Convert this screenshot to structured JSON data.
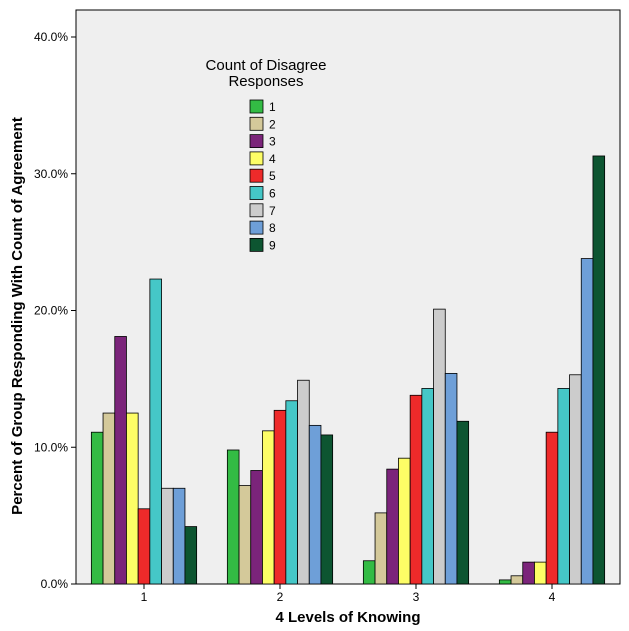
{
  "chart_data": {
    "type": "bar",
    "xlabel": "4 Levels of Knowing",
    "ylabel": "Percent of Group Responding With Count of Agreement",
    "categories": [
      "1",
      "2",
      "3",
      "4"
    ],
    "ylim": [
      0,
      40
    ],
    "y_ticks": [
      {
        "value": 0,
        "label": "0.0%"
      },
      {
        "value": 10,
        "label": "10.0%"
      },
      {
        "value": 20,
        "label": "20.0%"
      },
      {
        "value": 30,
        "label": "30.0%"
      },
      {
        "value": 40,
        "label": "40.0%"
      }
    ],
    "grid": false,
    "legend": {
      "title_lines": [
        "Count of Disagree",
        "Responses"
      ],
      "position": "top-left"
    },
    "series": [
      {
        "name": "1",
        "color": "#33bb44",
        "values": [
          11.1,
          9.8,
          1.7,
          0.3
        ]
      },
      {
        "name": "2",
        "color": "#d4c99a",
        "values": [
          12.5,
          7.2,
          5.2,
          0.6
        ]
      },
      {
        "name": "3",
        "color": "#7b247a",
        "values": [
          18.1,
          8.3,
          8.4,
          1.6
        ]
      },
      {
        "name": "4",
        "color": "#fdfd66",
        "values": [
          12.5,
          11.2,
          9.2,
          1.6
        ]
      },
      {
        "name": "5",
        "color": "#ee2a2a",
        "values": [
          5.5,
          12.7,
          13.8,
          11.1
        ]
      },
      {
        "name": "6",
        "color": "#45c7c7",
        "values": [
          22.3,
          13.4,
          14.3,
          14.3
        ]
      },
      {
        "name": "7",
        "color": "#cccccc",
        "values": [
          7.0,
          14.9,
          20.1,
          15.3
        ]
      },
      {
        "name": "8",
        "color": "#6e9fd8",
        "values": [
          7.0,
          11.6,
          15.4,
          23.8
        ]
      },
      {
        "name": "9",
        "color": "#0d5531",
        "values": [
          4.2,
          10.9,
          11.9,
          31.3
        ]
      }
    ]
  }
}
